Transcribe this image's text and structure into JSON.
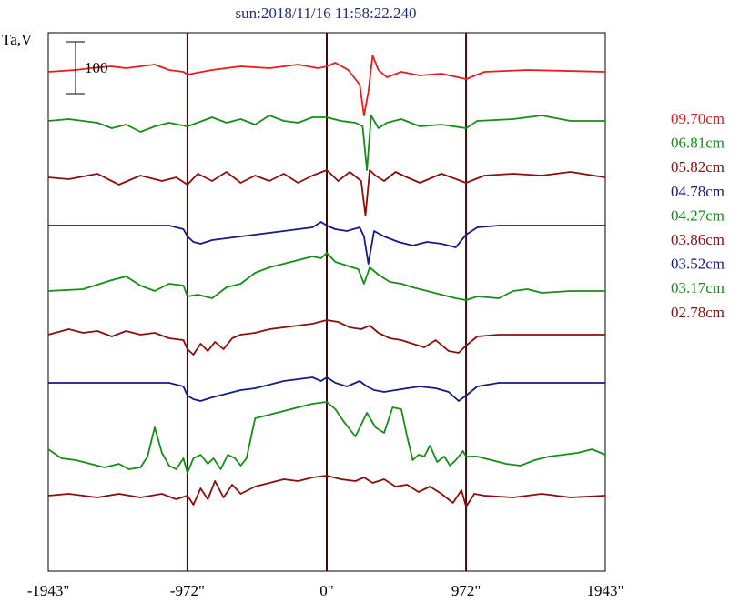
{
  "chart_data": {
    "type": "line",
    "title": "sun:2018/11/16 11:58:22.240",
    "ylabel": "Ta,V",
    "scale_bar_label": "100",
    "x_ticks": [
      {
        "label": "-1943\"",
        "value": -1943
      },
      {
        "label": "-972\"",
        "value": -972
      },
      {
        "label": "0\"",
        "value": 0
      },
      {
        "label": "972\"",
        "value": 972
      },
      {
        "label": "1943\"",
        "value": 1943
      }
    ],
    "xlim": [
      -1943,
      1943
    ],
    "vertical_lines": [
      -972,
      0,
      972
    ],
    "grid": false,
    "legend_position": "right",
    "series": [
      {
        "name": "09.70cm",
        "color": "#e81c1c",
        "baseline": 79,
        "x": [
          -1943,
          -1750,
          -1650,
          -1500,
          -1400,
          -1200,
          -1100,
          -1000,
          -972,
          -800,
          -600,
          -400,
          -200,
          -60,
          0,
          60,
          150,
          230,
          260,
          290,
          320,
          360,
          420,
          520,
          650,
          800,
          972,
          1100,
          1400,
          1943
        ],
        "y": [
          0,
          2,
          4,
          6,
          4,
          8,
          2,
          0,
          -3,
          2,
          6,
          4,
          8,
          4,
          6,
          10,
          2,
          -14,
          -48,
          -22,
          18,
          2,
          -6,
          0,
          -4,
          -2,
          -8,
          0,
          2,
          0
        ]
      },
      {
        "name": "06.81cm",
        "color": "#168d16",
        "baseline": 135,
        "x": [
          -1943,
          -1800,
          -1600,
          -1500,
          -1400,
          -1300,
          -1200,
          -1100,
          -972,
          -800,
          -700,
          -600,
          -500,
          -400,
          -300,
          -200,
          -100,
          0,
          100,
          200,
          250,
          280,
          310,
          360,
          420,
          520,
          650,
          800,
          972,
          1050,
          1300,
          1500,
          1700,
          1943
        ],
        "y": [
          2,
          4,
          0,
          -6,
          -2,
          -10,
          -4,
          0,
          -4,
          6,
          0,
          4,
          -2,
          8,
          2,
          0,
          6,
          6,
          2,
          0,
          -4,
          -52,
          8,
          -6,
          0,
          4,
          -4,
          -2,
          -6,
          2,
          4,
          8,
          2,
          2
        ]
      },
      {
        "name": "05.82cm",
        "color": "#8b0e0e",
        "baseline": 195,
        "x": [
          -1943,
          -1800,
          -1600,
          -1450,
          -1300,
          -1150,
          -1050,
          -972,
          -900,
          -800,
          -700,
          -600,
          -500,
          -400,
          -300,
          -200,
          -100,
          0,
          80,
          160,
          240,
          270,
          300,
          340,
          400,
          480,
          560,
          650,
          800,
          972,
          1100,
          1300,
          1500,
          1700,
          1943
        ],
        "y": [
          0,
          -2,
          4,
          -8,
          2,
          -4,
          0,
          -8,
          4,
          -4,
          6,
          -6,
          2,
          -4,
          4,
          -6,
          2,
          8,
          -4,
          6,
          -4,
          -42,
          8,
          2,
          -4,
          6,
          0,
          -6,
          4,
          -6,
          2,
          4,
          2,
          6,
          0
        ]
      },
      {
        "name": "04.78cm",
        "color": "#141b85",
        "baseline": 248,
        "x": [
          -1943,
          -1300,
          -1100,
          -1000,
          -972,
          -930,
          -880,
          -800,
          -700,
          -600,
          -500,
          -400,
          -300,
          -200,
          -100,
          -40,
          0,
          60,
          140,
          230,
          260,
          290,
          330,
          400,
          500,
          600,
          700,
          800,
          900,
          972,
          1050,
          1200,
          1500,
          1943
        ],
        "y": [
          0,
          0,
          0,
          -4,
          -12,
          -18,
          -20,
          -16,
          -14,
          -12,
          -10,
          -8,
          -6,
          -4,
          -2,
          4,
          0,
          -4,
          -6,
          -2,
          -12,
          -42,
          -6,
          -12,
          -18,
          -22,
          -18,
          -20,
          -24,
          -10,
          -2,
          0,
          0,
          0
        ]
      },
      {
        "name": "04.27cm",
        "color": "#168d16",
        "baseline": 322,
        "x": [
          -1943,
          -1700,
          -1500,
          -1400,
          -1300,
          -1200,
          -1100,
          -1000,
          -972,
          -900,
          -800,
          -700,
          -600,
          -500,
          -400,
          -300,
          -200,
          -100,
          -40,
          0,
          60,
          140,
          220,
          260,
          300,
          360,
          440,
          520,
          600,
          700,
          800,
          900,
          972,
          1050,
          1200,
          1300,
          1400,
          1500,
          1700,
          1943
        ],
        "y": [
          2,
          4,
          14,
          18,
          8,
          2,
          10,
          8,
          -4,
          -2,
          -6,
          6,
          10,
          22,
          28,
          32,
          36,
          40,
          38,
          44,
          34,
          30,
          26,
          10,
          28,
          20,
          12,
          10,
          6,
          2,
          -2,
          -6,
          -8,
          -4,
          -6,
          2,
          4,
          0,
          2,
          2
        ]
      },
      {
        "name": "03.86cm",
        "color": "#8b0e0e",
        "baseline": 368,
        "x": [
          -1943,
          -1800,
          -1700,
          -1600,
          -1500,
          -1400,
          -1300,
          -1200,
          -1100,
          -1000,
          -972,
          -930,
          -880,
          -830,
          -780,
          -720,
          -660,
          -600,
          -500,
          -400,
          -300,
          -200,
          -100,
          0,
          80,
          160,
          240,
          300,
          360,
          440,
          520,
          600,
          680,
          760,
          850,
          920,
          972,
          1050,
          1200,
          1400,
          1600,
          1943
        ],
        "y": [
          0,
          6,
          2,
          4,
          -2,
          4,
          0,
          2,
          -4,
          -6,
          -16,
          -22,
          -10,
          -18,
          -8,
          -16,
          -4,
          0,
          2,
          6,
          8,
          10,
          12,
          16,
          14,
          8,
          6,
          10,
          2,
          -4,
          -6,
          -10,
          -14,
          -6,
          -18,
          -20,
          -12,
          -2,
          0,
          0,
          0,
          0
        ]
      },
      {
        "name": "03.52cm",
        "color": "#141b85",
        "baseline": 421,
        "x": [
          -1943,
          -1400,
          -1100,
          -1000,
          -972,
          -930,
          -880,
          -800,
          -700,
          -600,
          -500,
          -400,
          -300,
          -200,
          -100,
          -40,
          0,
          60,
          140,
          230,
          280,
          330,
          400,
          480,
          560,
          650,
          760,
          850,
          920,
          972,
          1050,
          1200,
          1500,
          1943
        ],
        "y": [
          0,
          0,
          0,
          -4,
          -14,
          -18,
          -20,
          -16,
          -12,
          -8,
          -6,
          -2,
          2,
          4,
          6,
          2,
          6,
          0,
          -4,
          2,
          -4,
          -8,
          -10,
          -8,
          -6,
          -4,
          -6,
          -10,
          -20,
          -14,
          -4,
          0,
          0,
          0
        ]
      },
      {
        "name": "03.17cm",
        "color": "#168d16",
        "baseline": 500,
        "x": [
          -1943,
          -1850,
          -1750,
          -1650,
          -1550,
          -1450,
          -1380,
          -1300,
          -1250,
          -1200,
          -1150,
          -1100,
          -1050,
          -1000,
          -972,
          -930,
          -880,
          -830,
          -790,
          -740,
          -690,
          -640,
          -600,
          -560,
          -500,
          -400,
          -300,
          -200,
          -100,
          0,
          60,
          120,
          200,
          280,
          340,
          400,
          460,
          520,
          560,
          600,
          640,
          680,
          720,
          770,
          820,
          860,
          900,
          950,
          972,
          1050,
          1150,
          1250,
          1350,
          1450,
          1550,
          1650,
          1750,
          1850,
          1943
        ],
        "y": [
          6,
          -4,
          -6,
          -10,
          -14,
          -10,
          -16,
          -14,
          -2,
          30,
          2,
          -12,
          -16,
          -4,
          -20,
          -4,
          0,
          -10,
          -4,
          -16,
          0,
          -4,
          -12,
          -4,
          40,
          44,
          48,
          52,
          56,
          58,
          50,
          36,
          20,
          46,
          30,
          24,
          52,
          50,
          20,
          -6,
          0,
          -2,
          10,
          -8,
          -2,
          -12,
          -6,
          4,
          -2,
          -2,
          -6,
          -10,
          -12,
          -6,
          -2,
          0,
          2,
          6,
          0
        ]
      },
      {
        "name": "02.78cm",
        "color": "#8b0e0e",
        "baseline": 545,
        "x": [
          -1943,
          -1800,
          -1600,
          -1450,
          -1300,
          -1150,
          -1050,
          -972,
          -930,
          -880,
          -830,
          -780,
          -720,
          -660,
          -600,
          -500,
          -400,
          -300,
          -200,
          -100,
          0,
          100,
          200,
          260,
          320,
          400,
          480,
          560,
          640,
          720,
          800,
          880,
          940,
          972,
          1030,
          1100,
          1300,
          1500,
          1700,
          1943
        ],
        "y": [
          0,
          2,
          -2,
          2,
          -2,
          2,
          -4,
          0,
          -10,
          8,
          -4,
          16,
          -2,
          12,
          2,
          10,
          14,
          18,
          16,
          20,
          22,
          18,
          16,
          20,
          14,
          18,
          10,
          12,
          4,
          10,
          2,
          -8,
          6,
          -12,
          2,
          0,
          -2,
          2,
          -2,
          0
        ]
      }
    ]
  }
}
